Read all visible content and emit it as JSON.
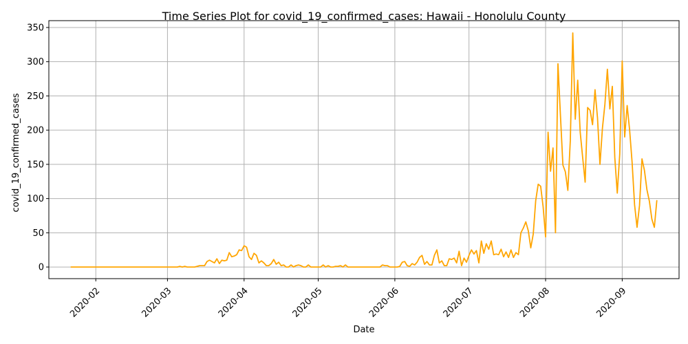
{
  "chart_data": {
    "type": "line",
    "title": "Time Series Plot for covid_19_confirmed_cases: Hawaii - Honolulu County",
    "xlabel": "Date",
    "ylabel": "covid_19_confirmed_cases",
    "xlim": [
      "2020-01-13",
      "2020-09-24"
    ],
    "ylim": [
      -17,
      360
    ],
    "x_ticks": [
      "2020-02",
      "2020-03",
      "2020-04",
      "2020-05",
      "2020-06",
      "2020-07",
      "2020-08",
      "2020-09"
    ],
    "y_ticks": [
      0,
      50,
      100,
      150,
      200,
      250,
      300,
      350
    ],
    "grid": true,
    "series": [
      {
        "color": "#ffa500",
        "x": [
          "2020-01-22",
          "2020-02-10",
          "2020-03-01",
          "2020-03-05",
          "2020-03-06",
          "2020-03-07",
          "2020-03-08",
          "2020-03-09",
          "2020-03-10",
          "2020-03-11",
          "2020-03-12",
          "2020-03-13",
          "2020-03-14",
          "2020-03-15",
          "2020-03-16",
          "2020-03-17",
          "2020-03-18",
          "2020-03-19",
          "2020-03-20",
          "2020-03-21",
          "2020-03-22",
          "2020-03-23",
          "2020-03-24",
          "2020-03-25",
          "2020-03-26",
          "2020-03-27",
          "2020-03-28",
          "2020-03-29",
          "2020-03-30",
          "2020-03-31",
          "2020-04-01",
          "2020-04-02",
          "2020-04-03",
          "2020-04-04",
          "2020-04-05",
          "2020-04-06",
          "2020-04-07",
          "2020-04-08",
          "2020-04-09",
          "2020-04-10",
          "2020-04-11",
          "2020-04-12",
          "2020-04-13",
          "2020-04-14",
          "2020-04-15",
          "2020-04-16",
          "2020-04-17",
          "2020-04-18",
          "2020-04-19",
          "2020-04-20",
          "2020-04-21",
          "2020-04-22",
          "2020-04-23",
          "2020-04-24",
          "2020-04-25",
          "2020-04-26",
          "2020-04-27",
          "2020-04-28",
          "2020-04-29",
          "2020-04-30",
          "2020-05-01",
          "2020-05-02",
          "2020-05-03",
          "2020-05-04",
          "2020-05-05",
          "2020-05-06",
          "2020-05-07",
          "2020-05-08",
          "2020-05-09",
          "2020-05-10",
          "2020-05-11",
          "2020-05-12",
          "2020-05-13",
          "2020-05-14",
          "2020-05-20",
          "2020-05-26",
          "2020-05-27",
          "2020-05-28",
          "2020-05-29",
          "2020-05-30",
          "2020-05-31",
          "2020-06-01",
          "2020-06-02",
          "2020-06-03",
          "2020-06-04",
          "2020-06-05",
          "2020-06-06",
          "2020-06-07",
          "2020-06-08",
          "2020-06-09",
          "2020-06-10",
          "2020-06-11",
          "2020-06-12",
          "2020-06-13",
          "2020-06-14",
          "2020-06-15",
          "2020-06-16",
          "2020-06-17",
          "2020-06-18",
          "2020-06-19",
          "2020-06-20",
          "2020-06-21",
          "2020-06-22",
          "2020-06-23",
          "2020-06-24",
          "2020-06-25",
          "2020-06-26",
          "2020-06-27",
          "2020-06-28",
          "2020-06-29",
          "2020-06-30",
          "2020-07-01",
          "2020-07-02",
          "2020-07-03",
          "2020-07-04",
          "2020-07-05",
          "2020-07-06",
          "2020-07-07",
          "2020-07-08",
          "2020-07-09",
          "2020-07-10",
          "2020-07-11",
          "2020-07-12",
          "2020-07-13",
          "2020-07-14",
          "2020-07-15",
          "2020-07-16",
          "2020-07-17",
          "2020-07-18",
          "2020-07-19",
          "2020-07-20",
          "2020-07-21",
          "2020-07-22",
          "2020-07-23",
          "2020-07-24",
          "2020-07-25",
          "2020-07-26",
          "2020-07-27",
          "2020-07-28",
          "2020-07-29",
          "2020-07-30",
          "2020-07-31",
          "2020-08-01",
          "2020-08-02",
          "2020-08-03",
          "2020-08-04",
          "2020-08-05",
          "2020-08-06",
          "2020-08-07",
          "2020-08-08",
          "2020-08-09",
          "2020-08-10",
          "2020-08-11",
          "2020-08-12",
          "2020-08-13",
          "2020-08-14",
          "2020-08-15",
          "2020-08-16",
          "2020-08-17",
          "2020-08-18",
          "2020-08-19",
          "2020-08-20",
          "2020-08-21",
          "2020-08-22",
          "2020-08-23",
          "2020-08-24",
          "2020-08-25",
          "2020-08-26",
          "2020-08-27",
          "2020-08-28",
          "2020-08-29",
          "2020-08-30",
          "2020-08-31",
          "2020-09-01",
          "2020-09-02",
          "2020-09-03",
          "2020-09-04",
          "2020-09-05",
          "2020-09-06",
          "2020-09-07",
          "2020-09-08",
          "2020-09-09",
          "2020-09-10",
          "2020-09-11",
          "2020-09-12",
          "2020-09-13",
          "2020-09-14",
          "2020-09-15"
        ],
        "y": [
          0,
          0,
          0,
          0,
          1,
          0,
          1,
          0,
          0,
          0,
          0,
          1,
          2,
          2,
          2,
          8,
          10,
          8,
          6,
          12,
          5,
          10,
          9,
          10,
          21,
          15,
          16,
          18,
          25,
          24,
          31,
          29,
          15,
          11,
          20,
          17,
          6,
          9,
          6,
          2,
          2,
          5,
          11,
          4,
          7,
          2,
          3,
          0,
          0,
          3,
          0,
          2,
          3,
          2,
          0,
          0,
          3,
          0,
          0,
          0,
          0,
          0,
          3,
          0,
          2,
          0,
          0,
          1,
          1,
          2,
          0,
          3,
          0,
          0,
          0,
          0,
          3,
          2,
          2,
          0,
          0,
          0,
          0,
          1,
          7,
          8,
          2,
          1,
          5,
          3,
          7,
          14,
          17,
          4,
          8,
          3,
          3,
          17,
          25,
          6,
          9,
          2,
          2,
          12,
          11,
          13,
          6,
          23,
          2,
          13,
          7,
          17,
          25,
          19,
          24,
          6,
          38,
          20,
          34,
          26,
          38,
          18,
          19,
          18,
          26,
          15,
          22,
          14,
          25,
          14,
          21,
          18,
          50,
          57,
          66,
          53,
          28,
          48,
          97,
          121,
          118,
          88,
          44,
          197,
          140,
          174,
          50,
          297,
          222,
          149,
          139,
          112,
          185,
          342,
          216,
          273,
          197,
          160,
          124,
          233,
          229,
          208,
          259,
          218,
          150,
          203,
          238,
          289,
          231,
          264,
          160,
          108,
          165,
          301,
          190,
          236,
          200,
          153,
          91,
          58,
          90,
          158,
          141,
          113,
          96,
          70,
          58,
          97
        ]
      }
    ]
  }
}
